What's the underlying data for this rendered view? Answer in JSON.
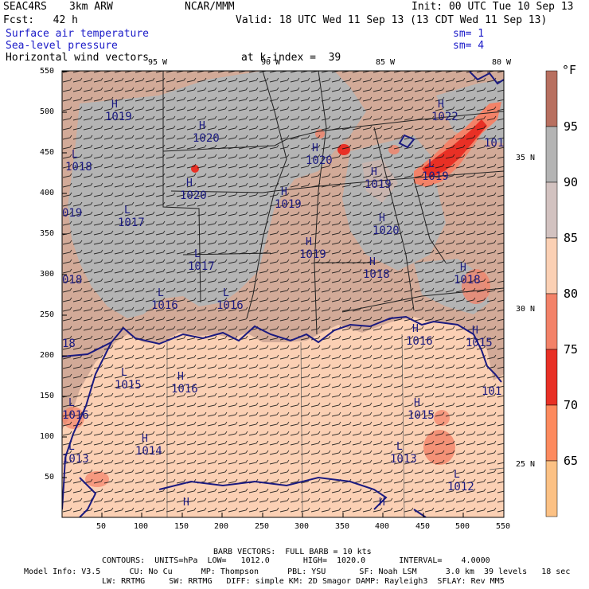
{
  "header": {
    "project": "SEAC4RS",
    "model": "3km ARW",
    "center": "NCAR/MMM",
    "init": "Init: 00 UTC Tue 10 Sep 13",
    "fcst": "Fcst:   42 h",
    "valid": "Valid: 18 UTC Wed 11 Sep 13 (13 CDT Wed 11 Sep 13)",
    "field1": "Surface air temperature",
    "field2": "Sea-level pressure",
    "field3": "Horizontal wind vectors",
    "sm1": "sm= 1",
    "sm2": "sm= 4",
    "at_index": "at k-index =  39"
  },
  "colors": {
    "land_gray": "#b4b4b4",
    "warm_land": "#d2aa98",
    "ocean": "#fbd0b4",
    "coast": "#1a1a80",
    "boundary": "#202020",
    "legend": [
      "#fcc184",
      "#fbd0b4",
      "#f38268",
      "#e83025",
      "#fd8a5e",
      "#e8b0a4",
      "#d2c2c0",
      "#b4b4b4",
      "#b87060"
    ]
  },
  "axes": {
    "x_ticks": [
      "50",
      "100",
      "150",
      "200",
      "250",
      "300",
      "350",
      "400",
      "450",
      "500",
      "550"
    ],
    "y_ticks": [
      "550",
      "500",
      "450",
      "400",
      "350",
      "300",
      "250",
      "200",
      "150",
      "100",
      "50"
    ],
    "lon_labels": [
      "95 W",
      "90 W",
      "85 W",
      "80 W"
    ],
    "lat_labels": [
      "35 N",
      "30 N",
      "25 N"
    ]
  },
  "legend": {
    "unit": "°F",
    "labels": [
      "95",
      "90",
      "85",
      "80",
      "75",
      "70",
      "65"
    ]
  },
  "pressure_labels": [
    {
      "sym": "H",
      "val": "1019"
    },
    {
      "sym": "H",
      "val": "1020"
    },
    {
      "sym": "L",
      "val": "1018"
    },
    {
      "sym": "H",
      "val": "1020"
    },
    {
      "sym": "H",
      "val": "1020"
    },
    {
      "sym": "H",
      "val": "1019"
    },
    {
      "sym": "",
      "val": "019"
    },
    {
      "sym": "L",
      "val": "1017"
    },
    {
      "sym": "L",
      "val": "1017"
    },
    {
      "sym": "L",
      "val": "1016"
    },
    {
      "sym": "L",
      "val": "1016"
    },
    {
      "sym": "",
      "val": "018"
    },
    {
      "sym": "H",
      "val": "1019"
    },
    {
      "sym": "H",
      "val": "1018"
    },
    {
      "sym": "H",
      "val": "1022"
    },
    {
      "sym": "H",
      "val": "1019"
    },
    {
      "sym": "L",
      "val": "1019"
    },
    {
      "sym": "H",
      "val": "1020"
    },
    {
      "sym": "H",
      "val": "1018"
    },
    {
      "sym": "",
      "val": "101"
    },
    {
      "sym": "H",
      "val": "1016"
    },
    {
      "sym": "H",
      "val": "1015"
    },
    {
      "sym": "L",
      "val": "1015"
    },
    {
      "sym": "H",
      "val": "1016"
    },
    {
      "sym": "L",
      "val": "1016"
    },
    {
      "sym": "H",
      "val": "1015"
    },
    {
      "sym": "H",
      "val": "1014"
    },
    {
      "sym": "L",
      "val": "1013"
    },
    {
      "sym": "L",
      "val": "1013"
    },
    {
      "sym": "L",
      "val": "1012"
    },
    {
      "sym": "",
      "val": "101"
    },
    {
      "sym": "H",
      "val": ""
    },
    {
      "sym": "H",
      "val": ""
    },
    {
      "sym": "",
      "val": "18"
    }
  ],
  "footer": {
    "barb": "BARB VECTORS:  FULL BARB = 10 kts",
    "contours": "CONTOURS:  UNITS=hPa  LOW=   1012.0       HIGH=  1020.0       INTERVAL=    4.0000",
    "info1": "Model Info: V3.5      CU: No Cu      MP: Thompson      PBL: YSU       SF: Noah LSM      3.0 km  39 levels   18 sec",
    "info2": "LW: RRTMG     SW: RRTMG   DIFF: simple KM: 2D Smagor DAMP: Rayleigh3  SFLAY: Rev MM5"
  }
}
